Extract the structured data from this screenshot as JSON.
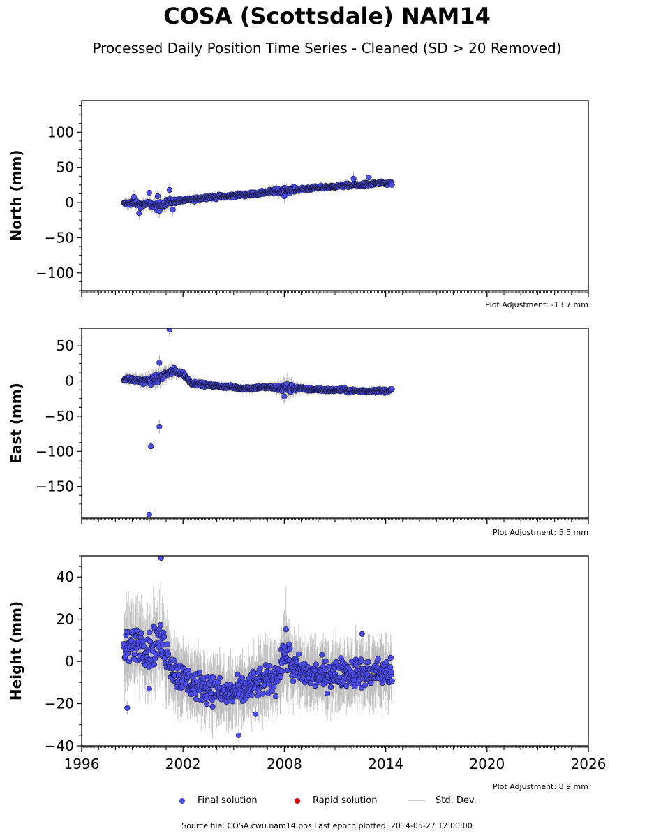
{
  "title": "COSA (Scottsdale) NAM14",
  "subtitle": "Processed Daily Position Time Series - Cleaned (SD > 20 Removed)",
  "legend": {
    "final": "Final solution",
    "rapid": "Rapid solution",
    "std": "Std. Dev."
  },
  "colors": {
    "final": "#4b4bf0",
    "final_edge": "#1a1a3a",
    "rapid": "#dd0000",
    "std": "#b0b0b0",
    "axis": "#000000"
  },
  "footer": "Source file: COSA.cwu.nam14.pos  Last epoch plotted: 2014-05-27 12:00:00",
  "chart_data": [
    {
      "type": "scatter",
      "ylabel": "North (mm)",
      "plot_adjustment": "Plot Adjustment: -13.7 mm",
      "xlim": [
        1996,
        2026
      ],
      "ylim": [
        -125,
        145
      ],
      "yticks": [
        -100,
        -50,
        0,
        50,
        100
      ],
      "xtick_labels_shown": false,
      "series": [
        {
          "kind": "final",
          "x": [
            1998.5,
            1999.0,
            1999.5,
            2000.0,
            2000.5,
            2001.0,
            2001.5,
            2002.0,
            2002.5,
            2003.0,
            2003.5,
            2004.0,
            2004.5,
            2005.0,
            2005.5,
            2006.0,
            2006.5,
            2007.0,
            2007.5,
            2008.0,
            2008.5,
            2009.0,
            2009.5,
            2010.0,
            2010.5,
            2011.0,
            2011.5,
            2012.0,
            2012.5,
            2013.0,
            2013.5,
            2014.0,
            2014.4
          ],
          "y": [
            -2,
            0,
            -3,
            -2,
            -6,
            0,
            2,
            3,
            4,
            6,
            8,
            8,
            9,
            10,
            11,
            12,
            13,
            15,
            16,
            17,
            18,
            19,
            20,
            21,
            22,
            23,
            24,
            25,
            25,
            26,
            27,
            27,
            27
          ],
          "spread": [
            4,
            4,
            4,
            5,
            6,
            5,
            4,
            3,
            3,
            3,
            3,
            3,
            3,
            3,
            3,
            3,
            3,
            3,
            4,
            5,
            4,
            3,
            3,
            3,
            3,
            3,
            3,
            3,
            3,
            3,
            3,
            3,
            3
          ],
          "outliers": [
            [
              1999.1,
              8
            ],
            [
              1999.4,
              -15
            ],
            [
              2000.0,
              14
            ],
            [
              2000.6,
              -12
            ],
            [
              2000.5,
              9
            ],
            [
              2001.2,
              18
            ],
            [
              2001.4,
              -10
            ],
            [
              2008.0,
              9
            ],
            [
              2012.1,
              34
            ],
            [
              2013.0,
              36
            ]
          ]
        },
        {
          "kind": "rapid",
          "x": [],
          "y": []
        }
      ]
    },
    {
      "type": "scatter",
      "ylabel": "East (mm)",
      "plot_adjustment": "Plot Adjustment: 5.5 mm",
      "xlim": [
        1996,
        2026
      ],
      "ylim": [
        -195,
        75
      ],
      "yticks": [
        -150,
        -100,
        -50,
        0,
        50
      ],
      "xtick_labels_shown": false,
      "series": [
        {
          "kind": "final",
          "x": [
            1998.5,
            1999.0,
            1999.5,
            2000.0,
            2000.5,
            2001.0,
            2001.5,
            2002.0,
            2002.5,
            2003.0,
            2003.5,
            2004.0,
            2004.5,
            2005.0,
            2005.5,
            2006.0,
            2006.5,
            2007.0,
            2007.5,
            2008.0,
            2008.5,
            2009.0,
            2009.5,
            2010.0,
            2010.5,
            2011.0,
            2011.5,
            2012.0,
            2012.5,
            2013.0,
            2013.5,
            2014.0,
            2014.4
          ],
          "y": [
            3,
            2,
            0,
            0,
            3,
            10,
            14,
            10,
            -3,
            -4,
            -6,
            -7,
            -8,
            -9,
            -10,
            -10,
            -9,
            -9,
            -10,
            -10,
            -10,
            -11,
            -12,
            -12,
            -13,
            -13,
            -13,
            -14,
            -14,
            -14,
            -14,
            -14,
            -13
          ],
          "spread": [
            4,
            4,
            5,
            6,
            7,
            6,
            5,
            4,
            3,
            3,
            3,
            3,
            3,
            3,
            3,
            3,
            3,
            3,
            4,
            9,
            6,
            3,
            3,
            3,
            3,
            3,
            3,
            3,
            3,
            3,
            3,
            3,
            3
          ],
          "outliers": [
            [
              2000.1,
              -93
            ],
            [
              2000.6,
              -65
            ],
            [
              2000.0,
              -190
            ],
            [
              2001.2,
              73
            ],
            [
              2000.6,
              26
            ],
            [
              2008.0,
              -22
            ]
          ]
        },
        {
          "kind": "rapid",
          "x": [],
          "y": []
        }
      ]
    },
    {
      "type": "scatter",
      "ylabel": "Height (mm)",
      "plot_adjustment": "Plot Adjustment: 8.9 mm",
      "xlim": [
        1996,
        2026
      ],
      "ylim": [
        -40,
        50
      ],
      "yticks": [
        -40,
        -20,
        0,
        20,
        40
      ],
      "xticks": [
        1996,
        2002,
        2008,
        2014,
        2020,
        2026
      ],
      "xtick_labels_shown": true,
      "series": [
        {
          "kind": "final",
          "x": [
            1998.5,
            1999.0,
            1999.5,
            2000.0,
            2000.5,
            2001.0,
            2001.5,
            2002.0,
            2002.5,
            2003.0,
            2003.5,
            2004.0,
            2004.5,
            2005.0,
            2005.5,
            2006.0,
            2006.5,
            2007.0,
            2007.5,
            2008.0,
            2008.5,
            2009.0,
            2009.5,
            2010.0,
            2010.5,
            2011.0,
            2011.5,
            2012.0,
            2012.5,
            2013.0,
            2013.5,
            2014.0,
            2014.4
          ],
          "y": [
            5,
            8,
            9,
            5,
            10,
            5,
            -5,
            -8,
            -10,
            -12,
            -12,
            -14,
            -16,
            -15,
            -14,
            -12,
            -10,
            -9,
            -8,
            5,
            -3,
            -5,
            -6,
            -7,
            -6,
            -6,
            -5,
            -5,
            -5,
            -6,
            -5,
            -5,
            -6
          ],
          "spread": [
            10,
            9,
            9,
            10,
            10,
            10,
            9,
            8,
            8,
            8,
            8,
            8,
            8,
            8,
            8,
            8,
            8,
            8,
            8,
            10,
            9,
            8,
            8,
            8,
            8,
            8,
            8,
            8,
            8,
            8,
            8,
            8,
            8
          ],
          "outliers": [
            [
              2000.7,
              49
            ],
            [
              1998.7,
              -22
            ],
            [
              2000.0,
              -13
            ],
            [
              2005.3,
              -35
            ],
            [
              2006.3,
              -25
            ],
            [
              2012.6,
              13
            ]
          ]
        },
        {
          "kind": "rapid",
          "x": [],
          "y": []
        }
      ]
    }
  ]
}
